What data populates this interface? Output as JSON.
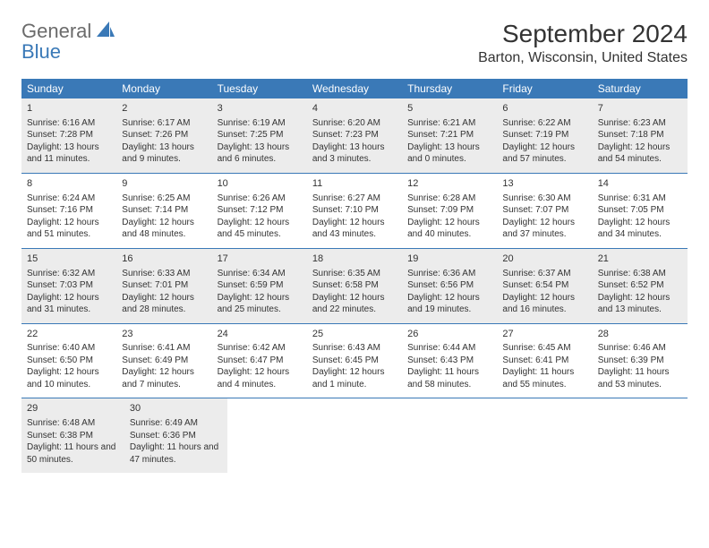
{
  "logo": {
    "line1": "General",
    "line2": "Blue",
    "icon_color": "#3a79b7"
  },
  "title": "September 2024",
  "location": "Barton, Wisconsin, United States",
  "colors": {
    "header_bg": "#3a79b7",
    "header_text": "#ffffff",
    "shaded_bg": "#ececec",
    "border": "#3a79b7",
    "text": "#333333",
    "logo_gray": "#6b6b6b"
  },
  "weekdays": [
    "Sunday",
    "Monday",
    "Tuesday",
    "Wednesday",
    "Thursday",
    "Friday",
    "Saturday"
  ],
  "weeks": [
    {
      "shaded": true,
      "days": [
        {
          "n": "1",
          "sunrise": "6:16 AM",
          "sunset": "7:28 PM",
          "daylight": "13 hours and 11 minutes."
        },
        {
          "n": "2",
          "sunrise": "6:17 AM",
          "sunset": "7:26 PM",
          "daylight": "13 hours and 9 minutes."
        },
        {
          "n": "3",
          "sunrise": "6:19 AM",
          "sunset": "7:25 PM",
          "daylight": "13 hours and 6 minutes."
        },
        {
          "n": "4",
          "sunrise": "6:20 AM",
          "sunset": "7:23 PM",
          "daylight": "13 hours and 3 minutes."
        },
        {
          "n": "5",
          "sunrise": "6:21 AM",
          "sunset": "7:21 PM",
          "daylight": "13 hours and 0 minutes."
        },
        {
          "n": "6",
          "sunrise": "6:22 AM",
          "sunset": "7:19 PM",
          "daylight": "12 hours and 57 minutes."
        },
        {
          "n": "7",
          "sunrise": "6:23 AM",
          "sunset": "7:18 PM",
          "daylight": "12 hours and 54 minutes."
        }
      ]
    },
    {
      "shaded": false,
      "days": [
        {
          "n": "8",
          "sunrise": "6:24 AM",
          "sunset": "7:16 PM",
          "daylight": "12 hours and 51 minutes."
        },
        {
          "n": "9",
          "sunrise": "6:25 AM",
          "sunset": "7:14 PM",
          "daylight": "12 hours and 48 minutes."
        },
        {
          "n": "10",
          "sunrise": "6:26 AM",
          "sunset": "7:12 PM",
          "daylight": "12 hours and 45 minutes."
        },
        {
          "n": "11",
          "sunrise": "6:27 AM",
          "sunset": "7:10 PM",
          "daylight": "12 hours and 43 minutes."
        },
        {
          "n": "12",
          "sunrise": "6:28 AM",
          "sunset": "7:09 PM",
          "daylight": "12 hours and 40 minutes."
        },
        {
          "n": "13",
          "sunrise": "6:30 AM",
          "sunset": "7:07 PM",
          "daylight": "12 hours and 37 minutes."
        },
        {
          "n": "14",
          "sunrise": "6:31 AM",
          "sunset": "7:05 PM",
          "daylight": "12 hours and 34 minutes."
        }
      ]
    },
    {
      "shaded": true,
      "days": [
        {
          "n": "15",
          "sunrise": "6:32 AM",
          "sunset": "7:03 PM",
          "daylight": "12 hours and 31 minutes."
        },
        {
          "n": "16",
          "sunrise": "6:33 AM",
          "sunset": "7:01 PM",
          "daylight": "12 hours and 28 minutes."
        },
        {
          "n": "17",
          "sunrise": "6:34 AM",
          "sunset": "6:59 PM",
          "daylight": "12 hours and 25 minutes."
        },
        {
          "n": "18",
          "sunrise": "6:35 AM",
          "sunset": "6:58 PM",
          "daylight": "12 hours and 22 minutes."
        },
        {
          "n": "19",
          "sunrise": "6:36 AM",
          "sunset": "6:56 PM",
          "daylight": "12 hours and 19 minutes."
        },
        {
          "n": "20",
          "sunrise": "6:37 AM",
          "sunset": "6:54 PM",
          "daylight": "12 hours and 16 minutes."
        },
        {
          "n": "21",
          "sunrise": "6:38 AM",
          "sunset": "6:52 PM",
          "daylight": "12 hours and 13 minutes."
        }
      ]
    },
    {
      "shaded": false,
      "days": [
        {
          "n": "22",
          "sunrise": "6:40 AM",
          "sunset": "6:50 PM",
          "daylight": "12 hours and 10 minutes."
        },
        {
          "n": "23",
          "sunrise": "6:41 AM",
          "sunset": "6:49 PM",
          "daylight": "12 hours and 7 minutes."
        },
        {
          "n": "24",
          "sunrise": "6:42 AM",
          "sunset": "6:47 PM",
          "daylight": "12 hours and 4 minutes."
        },
        {
          "n": "25",
          "sunrise": "6:43 AM",
          "sunset": "6:45 PM",
          "daylight": "12 hours and 1 minute."
        },
        {
          "n": "26",
          "sunrise": "6:44 AM",
          "sunset": "6:43 PM",
          "daylight": "11 hours and 58 minutes."
        },
        {
          "n": "27",
          "sunrise": "6:45 AM",
          "sunset": "6:41 PM",
          "daylight": "11 hours and 55 minutes."
        },
        {
          "n": "28",
          "sunrise": "6:46 AM",
          "sunset": "6:39 PM",
          "daylight": "11 hours and 53 minutes."
        }
      ]
    },
    {
      "shaded": true,
      "days": [
        {
          "n": "29",
          "sunrise": "6:48 AM",
          "sunset": "6:38 PM",
          "daylight": "11 hours and 50 minutes."
        },
        {
          "n": "30",
          "sunrise": "6:49 AM",
          "sunset": "6:36 PM",
          "daylight": "11 hours and 47 minutes."
        },
        null,
        null,
        null,
        null,
        null
      ]
    }
  ],
  "labels": {
    "sunrise": "Sunrise:",
    "sunset": "Sunset:",
    "daylight": "Daylight:"
  }
}
